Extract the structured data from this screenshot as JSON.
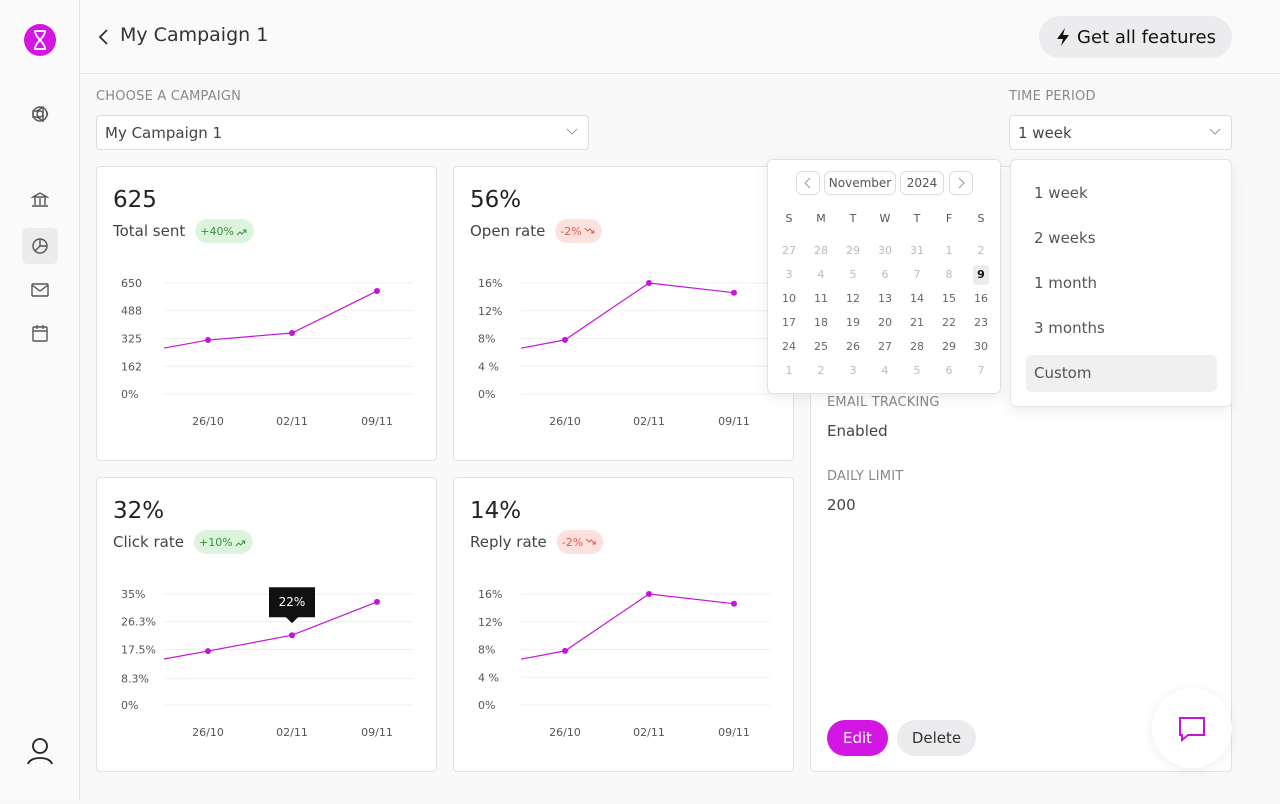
{
  "header": {
    "title": "My Campaign 1",
    "cta": "Get all features"
  },
  "filters": {
    "campaign": {
      "label": "CHOOSE A CAMPAIGN",
      "value": "My Campaign 1"
    },
    "period": {
      "label": "TIME PERIOD",
      "value": "1 week"
    }
  },
  "period_options": [
    "1 week",
    "2 weeks",
    "1 month",
    "3 months",
    "Custom"
  ],
  "calendar": {
    "month": "November",
    "year": "2024",
    "weekdays": [
      "S",
      "M",
      "T",
      "W",
      "T",
      "F",
      "S"
    ],
    "weeks": [
      [
        27,
        28,
        29,
        30,
        31,
        1,
        2
      ],
      [
        3,
        4,
        5,
        6,
        7,
        8,
        9
      ],
      [
        10,
        11,
        12,
        13,
        14,
        15,
        16
      ],
      [
        17,
        18,
        19,
        20,
        21,
        22,
        23
      ],
      [
        24,
        25,
        26,
        27,
        28,
        29,
        30
      ],
      [
        1,
        2,
        3,
        4,
        5,
        6,
        7
      ]
    ]
  },
  "details": {
    "fields": [
      {
        "label": "EMAIL TRACKING",
        "value": "Enabled"
      },
      {
        "label": "DAILY LIMIT",
        "value": "200"
      }
    ],
    "actions": [
      "Edit",
      "Delete"
    ]
  },
  "chart_data": [
    {
      "type": "line",
      "title": "625",
      "subtitle": "Total sent",
      "badge": "+40%",
      "trend": "up",
      "categories": [
        null,
        "26/10",
        "02/11",
        "09/11"
      ],
      "values": [
        269,
        316,
        357,
        603
      ],
      "color": "#c613da",
      "ylim": [
        0,
        650
      ],
      "yticks": [
        {
          "value": 0,
          "label": "0%"
        },
        162,
        325,
        488,
        650
      ],
      "grid": true
    },
    {
      "type": "line",
      "title": "56%",
      "subtitle": "Open rate",
      "badge": "-2%",
      "trend": "down",
      "categories": [
        null,
        "26/10",
        "02/11",
        "09/11"
      ],
      "values": [
        6.6,
        7.8,
        16,
        14.6
      ],
      "color": "#c613da",
      "ylim": [
        0,
        16
      ],
      "yticks": [
        {
          "value": 0,
          "label": "0%"
        },
        {
          "value": 4,
          "label": "4 %"
        },
        {
          "value": 8,
          "label": "8%"
        },
        {
          "value": 12,
          "label": "12%"
        },
        {
          "value": 16,
          "label": "16%"
        }
      ],
      "grid": true
    },
    {
      "type": "line",
      "title": "32%",
      "subtitle": "Click rate",
      "badge": "+10%",
      "trend": "up",
      "categories": [
        null,
        "26/10",
        "02/11",
        "09/11"
      ],
      "values": [
        14.5,
        17,
        22,
        32.5
      ],
      "value_labels": [
        null,
        null,
        "22%",
        null
      ],
      "color": "#c613da",
      "ylim": [
        0,
        35
      ],
      "yticks": [
        {
          "value": 0,
          "label": "0%"
        },
        {
          "value": 8.3,
          "label": "8.3%"
        },
        {
          "value": 17.5,
          "label": "17.5%"
        },
        {
          "value": 26.3,
          "label": "26.3%"
        },
        {
          "value": 35,
          "label": "35%"
        }
      ],
      "grid": true
    },
    {
      "type": "line",
      "title": "14%",
      "subtitle": "Reply rate",
      "badge": "-2%",
      "trend": "down",
      "categories": [
        null,
        "26/10",
        "02/11",
        "09/11"
      ],
      "values": [
        6.6,
        7.8,
        16,
        14.6
      ],
      "color": "#c613da",
      "ylim": [
        0,
        16
      ],
      "yticks": [
        {
          "value": 0,
          "label": "0%"
        },
        {
          "value": 4,
          "label": "4 %"
        },
        {
          "value": 8,
          "label": "8%"
        },
        {
          "value": 12,
          "label": "12%"
        },
        {
          "value": 16,
          "label": "16%"
        }
      ],
      "grid": true
    }
  ]
}
